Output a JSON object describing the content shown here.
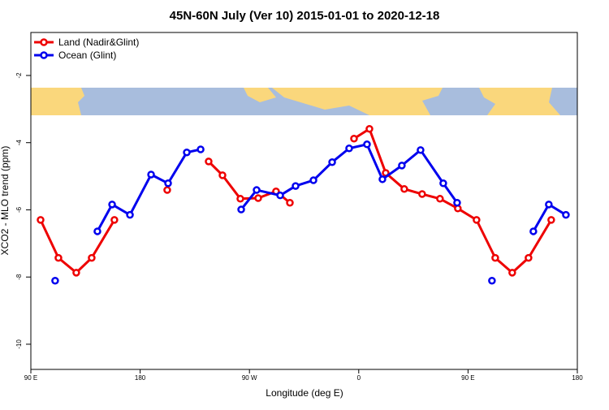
{
  "chart_data": {
    "type": "line",
    "title": "45N-60N July (Ver 10)   2015-01-01 to 2020-12-18",
    "x_label": "Longitude (deg E)",
    "y_label": "XCO2 - MLO trend (ppm)",
    "xlim": [
      90,
      540
    ],
    "ylim": [
      -10.75,
      -0.72
    ],
    "xticks": [
      {
        "value": 90,
        "label": "90 E"
      },
      {
        "value": 180,
        "label": "180"
      },
      {
        "value": 270,
        "label": "90 W"
      },
      {
        "value": 360,
        "label": "0"
      },
      {
        "value": 450,
        "label": "90 E"
      },
      {
        "value": 540,
        "label": "180"
      }
    ],
    "yticks": [
      -2,
      -4,
      -6,
      -8,
      -10
    ],
    "legend": "topleft",
    "series": [
      {
        "name": "Land (Nadir&Glint)",
        "color": "#ee0000",
        "x": [
          98.0,
          112.7,
          127.4,
          140.1,
          158.8,
          null,
          202.3,
          null,
          236.4,
          247.8,
          262.5,
          277.2,
          291.9,
          303.3,
          null,
          356.1,
          368.8,
          382.2,
          397.5,
          412.2,
          426.9,
          441.6,
          457.0,
          472.4,
          486.4,
          499.8,
          518.5
        ],
        "values": [
          -6.3,
          -7.43,
          -7.87,
          -7.43,
          -6.3,
          null,
          -5.41,
          null,
          -4.56,
          -4.97,
          -5.67,
          -5.65,
          -5.45,
          -5.79,
          null,
          -3.88,
          -3.59,
          -4.9,
          -5.38,
          -5.53,
          -5.67,
          -5.96,
          -6.3,
          -7.43,
          -7.87,
          -7.43,
          -6.3
        ]
      },
      {
        "name": "Ocean (Glint)",
        "color": "#0000ee",
        "x": [
          110.0,
          null,
          144.8,
          156.9,
          171.6,
          189.0,
          203.0,
          218.4,
          229.8,
          null,
          263.2,
          275.9,
          295.3,
          308.0,
          322.7,
          338.1,
          352.1,
          366.8,
          379.5,
          395.5,
          410.9,
          429.6,
          441.0,
          null,
          469.7,
          null,
          503.8,
          516.5,
          530.6
        ],
        "values": [
          -8.11,
          null,
          -6.64,
          -5.84,
          -6.15,
          -4.95,
          -5.21,
          -4.29,
          -4.2,
          null,
          -5.99,
          -5.41,
          -5.57,
          -5.29,
          -5.12,
          -4.58,
          -4.17,
          -4.05,
          -5.09,
          -4.68,
          -4.22,
          -5.21,
          -5.79,
          null,
          -8.11,
          null,
          -6.64,
          -5.84,
          -6.15
        ]
      }
    ]
  }
}
